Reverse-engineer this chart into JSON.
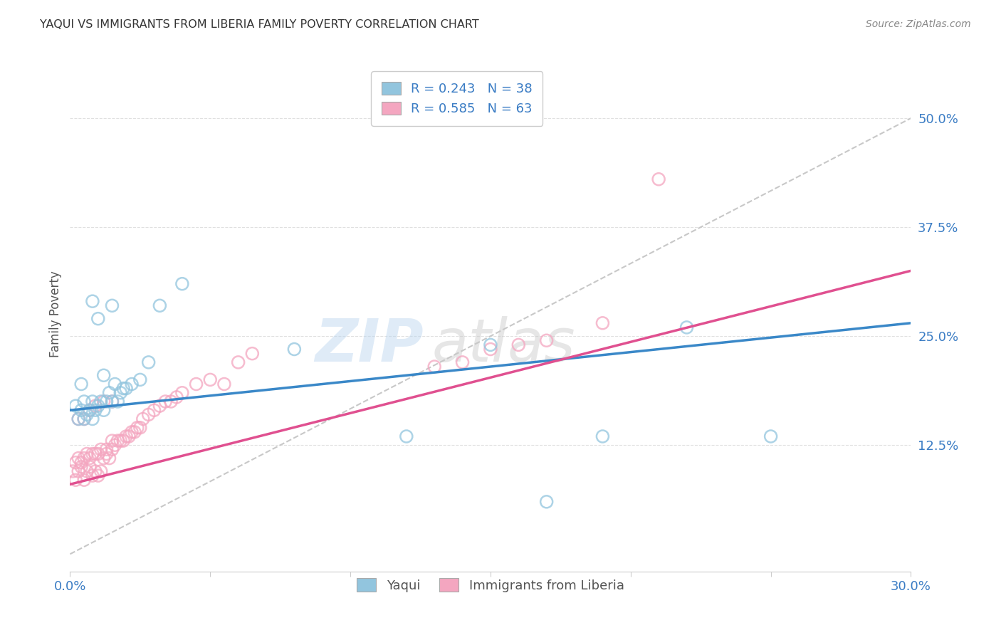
{
  "title": "YAQUI VS IMMIGRANTS FROM LIBERIA FAMILY POVERTY CORRELATION CHART",
  "source": "Source: ZipAtlas.com",
  "ylabel": "Family Poverty",
  "ytick_labels": [
    "12.5%",
    "25.0%",
    "37.5%",
    "50.0%"
  ],
  "ytick_values": [
    0.125,
    0.25,
    0.375,
    0.5
  ],
  "xlim": [
    0.0,
    0.3
  ],
  "ylim": [
    -0.02,
    0.57
  ],
  "legend1_label": "R = 0.243   N = 38",
  "legend2_label": "R = 0.585   N = 63",
  "blue_color": "#92c5de",
  "pink_color": "#f4a6c0",
  "trend_blue": "#3a88c8",
  "trend_pink": "#e05090",
  "diagonal_color": "#c8c8c8",
  "watermark_zip": "ZIP",
  "watermark_atlas": "atlas",
  "legend_label1": "Yaqui",
  "legend_label2": "Immigrants from Liberia",
  "yaqui_x": [
    0.002,
    0.003,
    0.004,
    0.004,
    0.005,
    0.005,
    0.006,
    0.007,
    0.008,
    0.008,
    0.009,
    0.01,
    0.011,
    0.012,
    0.012,
    0.013,
    0.014,
    0.015,
    0.016,
    0.017,
    0.018,
    0.019,
    0.02,
    0.022,
    0.025,
    0.028,
    0.032,
    0.04,
    0.08,
    0.12,
    0.15,
    0.22,
    0.008,
    0.01,
    0.015,
    0.17,
    0.19,
    0.25
  ],
  "yaqui_y": [
    0.17,
    0.155,
    0.165,
    0.195,
    0.155,
    0.175,
    0.16,
    0.165,
    0.155,
    0.175,
    0.165,
    0.17,
    0.175,
    0.165,
    0.205,
    0.175,
    0.185,
    0.175,
    0.195,
    0.175,
    0.185,
    0.19,
    0.19,
    0.195,
    0.2,
    0.22,
    0.285,
    0.31,
    0.235,
    0.135,
    0.24,
    0.26,
    0.29,
    0.27,
    0.285,
    0.06,
    0.135,
    0.135
  ],
  "liberia_x": [
    0.001,
    0.002,
    0.002,
    0.003,
    0.003,
    0.004,
    0.004,
    0.005,
    0.005,
    0.006,
    0.006,
    0.007,
    0.007,
    0.008,
    0.008,
    0.009,
    0.009,
    0.01,
    0.01,
    0.011,
    0.011,
    0.012,
    0.013,
    0.013,
    0.014,
    0.015,
    0.015,
    0.016,
    0.017,
    0.018,
    0.019,
    0.02,
    0.021,
    0.022,
    0.023,
    0.024,
    0.025,
    0.026,
    0.028,
    0.03,
    0.032,
    0.034,
    0.036,
    0.038,
    0.04,
    0.045,
    0.05,
    0.055,
    0.06,
    0.065,
    0.17,
    0.19,
    0.13,
    0.14,
    0.15,
    0.16,
    0.003,
    0.005,
    0.007,
    0.009,
    0.012,
    0.015,
    0.21
  ],
  "liberia_y": [
    0.095,
    0.085,
    0.105,
    0.095,
    0.11,
    0.1,
    0.105,
    0.085,
    0.11,
    0.095,
    0.115,
    0.1,
    0.11,
    0.09,
    0.115,
    0.095,
    0.115,
    0.09,
    0.115,
    0.095,
    0.12,
    0.11,
    0.115,
    0.12,
    0.11,
    0.12,
    0.13,
    0.125,
    0.13,
    0.13,
    0.13,
    0.135,
    0.135,
    0.14,
    0.14,
    0.145,
    0.145,
    0.155,
    0.16,
    0.165,
    0.17,
    0.175,
    0.175,
    0.18,
    0.185,
    0.195,
    0.2,
    0.195,
    0.22,
    0.23,
    0.245,
    0.265,
    0.215,
    0.22,
    0.235,
    0.24,
    0.155,
    0.155,
    0.165,
    0.17,
    0.175,
    0.175,
    0.43
  ],
  "yaqui_trend_x": [
    0.0,
    0.3
  ],
  "yaqui_trend_y": [
    0.165,
    0.265
  ],
  "liberia_trend_x": [
    0.0,
    0.3
  ],
  "liberia_trend_y": [
    0.08,
    0.325
  ]
}
